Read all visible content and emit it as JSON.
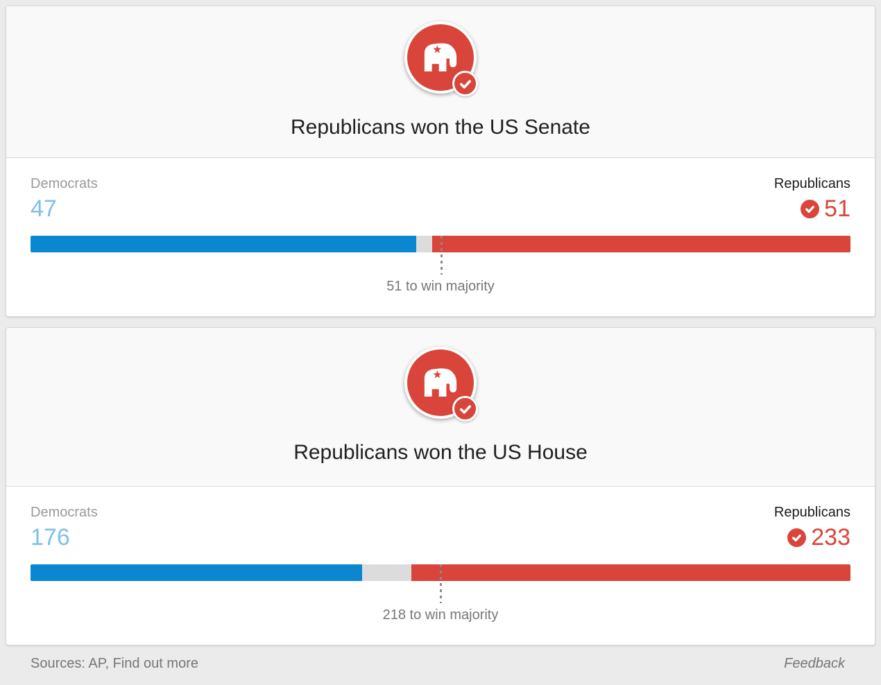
{
  "page": {
    "background": "#ebebeb",
    "footer": {
      "sources_prefix": "Sources: AP, ",
      "find_out_more": "Find out more",
      "feedback": "Feedback"
    }
  },
  "colors": {
    "democrat_bar": "#0b87d1",
    "democrat_value_text": "#7fc0e8",
    "republican_red": "#d9453a",
    "undecided_bar": "#dcdcdc",
    "card_header_bg": "#f9f9f9",
    "page_bg": "#ebebeb",
    "muted_text": "#777777",
    "label_gray": "#999999"
  },
  "icons": {
    "winner_badge": "gop-elephant-icon",
    "winner_check": "check-circle-icon",
    "seat_check": "check-circle-icon"
  },
  "cards": [
    {
      "title": "Republicans won the US Senate"
    },
    {
      "title": "Republicans won the US House"
    }
  ],
  "chart_data": [
    {
      "type": "bar",
      "orientation": "horizontal-stacked",
      "title": "Republicans won the US Senate",
      "categories": [
        "Democrats",
        "Undecided",
        "Republicans"
      ],
      "values": [
        47,
        2,
        51
      ],
      "total_seats": 100,
      "majority_threshold": 51,
      "annotation": "51 to win majority",
      "winner": "Republicans",
      "legend_position": "above-bar-ends",
      "colors": {
        "Democrats": "#0b87d1",
        "Undecided": "#dcdcdc",
        "Republicans": "#d9453a"
      }
    },
    {
      "type": "bar",
      "orientation": "horizontal-stacked",
      "title": "Republicans won the US House",
      "categories": [
        "Democrats",
        "Undecided",
        "Republicans"
      ],
      "values": [
        176,
        26,
        233
      ],
      "total_seats": 435,
      "majority_threshold": 218,
      "annotation": "218 to win majority",
      "winner": "Republicans",
      "legend_position": "above-bar-ends",
      "colors": {
        "Democrats": "#0b87d1",
        "Undecided": "#dcdcdc",
        "Republicans": "#d9453a"
      }
    }
  ]
}
